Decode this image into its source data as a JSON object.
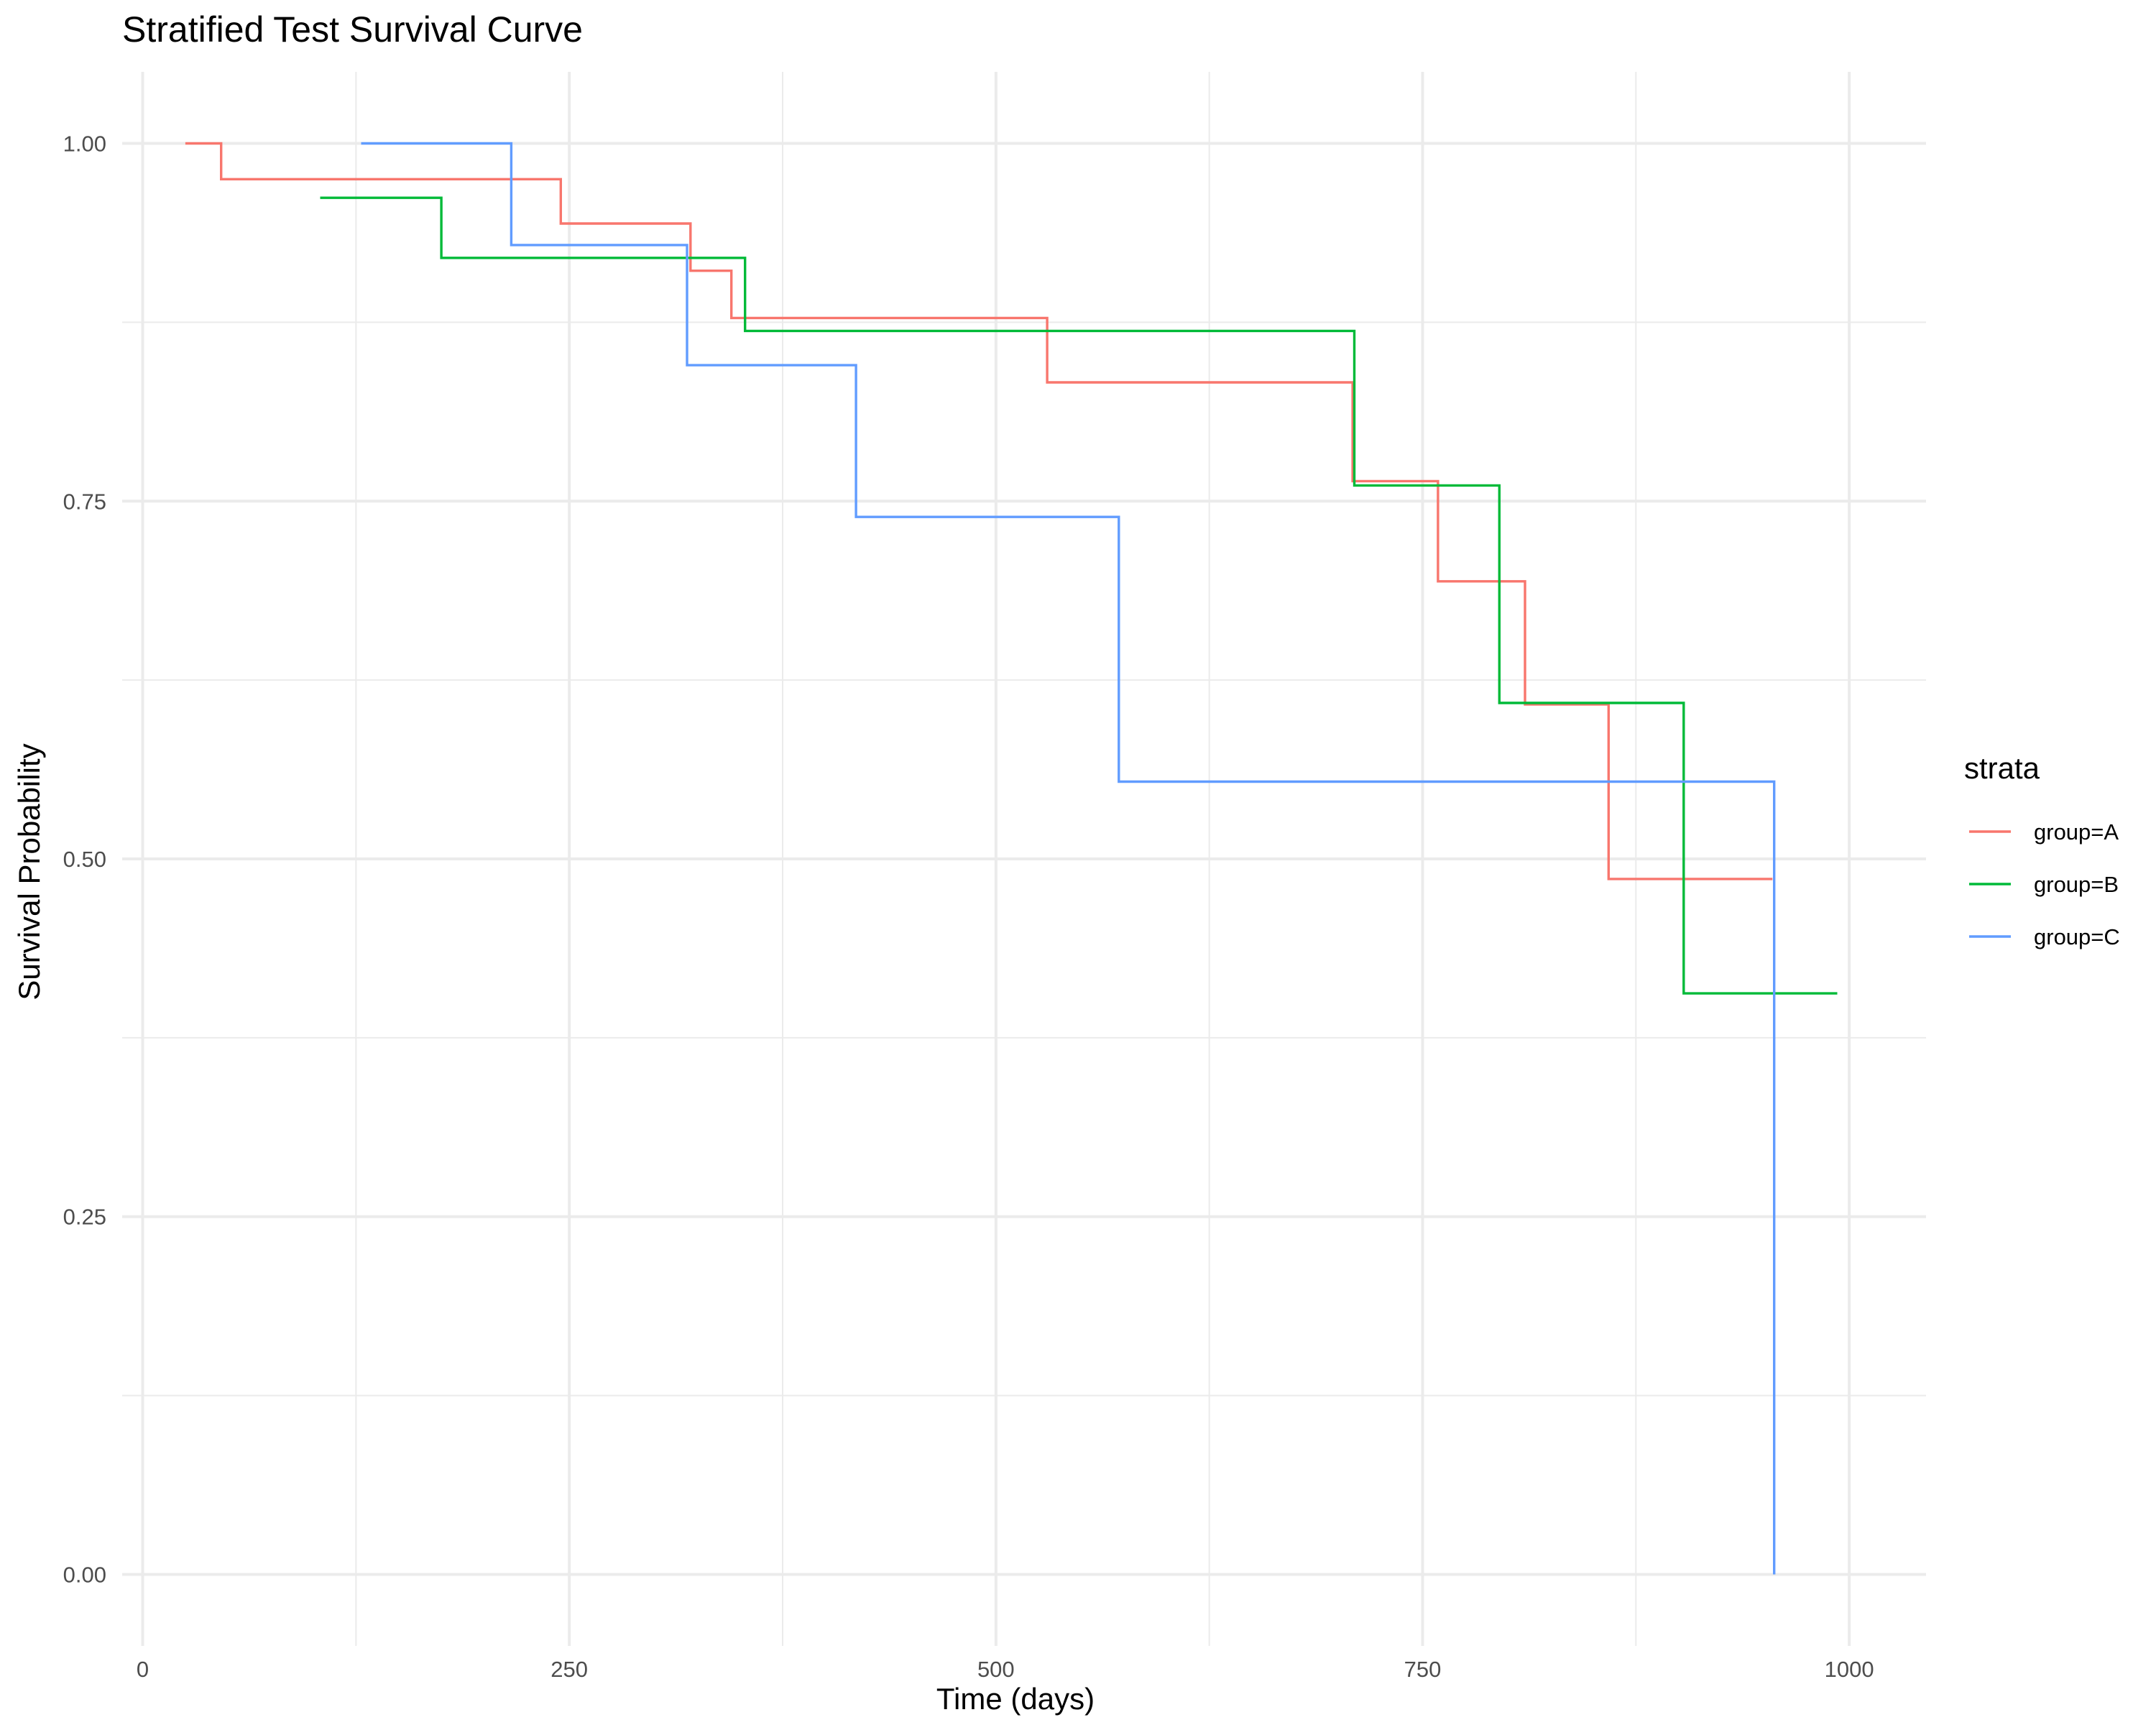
{
  "chart_data": {
    "type": "line",
    "step": "hv",
    "title": "Stratified Test Survival Curve",
    "xlabel": "Time (days)",
    "ylabel": "Survival Probability",
    "xlim": [
      -12,
      1045
    ],
    "ylim": [
      -0.05,
      1.05
    ],
    "x_ticks": [
      0,
      250,
      500,
      750,
      1000
    ],
    "x_tick_labels": [
      "0",
      "250",
      "500",
      "750",
      "1000"
    ],
    "y_ticks": [
      0,
      0.25,
      0.5,
      0.75,
      1
    ],
    "y_tick_labels": [
      "0.00",
      "0.25",
      "0.50",
      "0.75",
      "1.00"
    ],
    "grid": true,
    "legend": {
      "title": "strata",
      "position": "right"
    },
    "series": [
      {
        "name": "group=A",
        "color": "#F8766D",
        "x": [
          25,
          46,
          245,
          321,
          345,
          530,
          709,
          759,
          810,
          859,
          955
        ],
        "y": [
          1.0,
          0.975,
          0.944,
          0.911,
          0.878,
          0.833,
          0.764,
          0.694,
          0.608,
          0.486,
          0.486
        ]
      },
      {
        "name": "group=B",
        "color": "#00BA38",
        "x": [
          104,
          175,
          353,
          710,
          795,
          903,
          993
        ],
        "y": [
          0.962,
          0.92,
          0.869,
          0.761,
          0.609,
          0.406,
          0.406
        ]
      },
      {
        "name": "group=C",
        "color": "#619CFF",
        "x": [
          128,
          216,
          319,
          418,
          572,
          956,
          956
        ],
        "y": [
          1.0,
          0.929,
          0.845,
          0.739,
          0.554,
          0.554,
          0.0
        ]
      }
    ]
  }
}
